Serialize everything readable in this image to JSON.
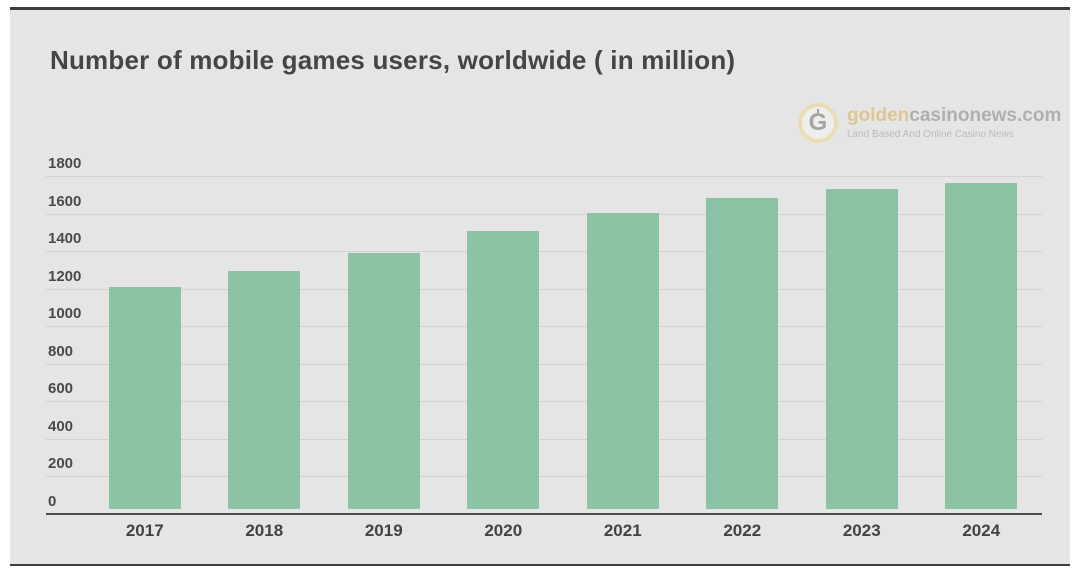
{
  "page": {
    "background": "#ffffff",
    "card_background": "#e5e5e5",
    "card_border_color": "#3d3d3d"
  },
  "title": "Number of mobile games users, worldwide ( in million)",
  "logo": {
    "icon": "g-coin-icon",
    "icon_letter": "G",
    "name_gold": "golden",
    "name_gray": "casinonews.com",
    "tagline": "Land Based And Online Casino News",
    "gold_color": "#d9bc77",
    "gray_color": "#9e9e9e"
  },
  "chart_data": {
    "type": "bar",
    "title": "Number of mobile games users, worldwide ( in million)",
    "categories": [
      "2017",
      "2018",
      "2019",
      "2020",
      "2021",
      "2022",
      "2023",
      "2024"
    ],
    "values": [
      1180,
      1265,
      1365,
      1480,
      1575,
      1655,
      1705,
      1735
    ],
    "xlabel": "",
    "ylabel": "",
    "ylim": [
      0,
      1800
    ],
    "y_ticks": [
      0,
      200,
      400,
      600,
      800,
      1000,
      1200,
      1400,
      1600,
      1800
    ],
    "grid": true,
    "legend": "none",
    "bar_color": "#8cc3a5",
    "gridline_color": "#d2d2d2",
    "axis_color": "#4f4f4f",
    "tick_label_color": "#4a4a4a"
  }
}
